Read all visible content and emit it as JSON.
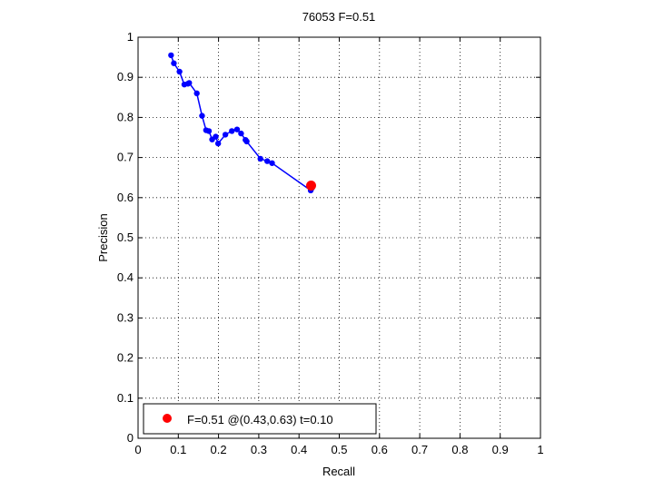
{
  "chart_data": {
    "type": "line",
    "title": "76053 F=0.51",
    "xlabel": "Recall",
    "ylabel": "Precision",
    "xlim": [
      0,
      1
    ],
    "ylim": [
      0,
      1
    ],
    "xticks": [
      0,
      0.1,
      0.2,
      0.3,
      0.4,
      0.5,
      0.6,
      0.7,
      0.8,
      0.9,
      1
    ],
    "yticks": [
      0,
      0.1,
      0.2,
      0.3,
      0.4,
      0.5,
      0.6,
      0.7,
      0.8,
      0.9,
      1
    ],
    "xtick_labels": [
      "0",
      "0.1",
      "0.2",
      "0.3",
      "0.4",
      "0.5",
      "0.6",
      "0.7",
      "0.8",
      "0.9",
      "1"
    ],
    "ytick_labels": [
      "0",
      "0.1",
      "0.2",
      "0.3",
      "0.4",
      "0.5",
      "0.6",
      "0.7",
      "0.8",
      "0.9",
      "1"
    ],
    "grid": true,
    "series": [
      {
        "color": "#0000ff",
        "x": [
          0.082,
          0.089,
          0.103,
          0.115,
          0.124,
          0.127,
          0.146,
          0.159,
          0.169,
          0.176,
          0.184,
          0.193,
          0.199,
          0.217,
          0.233,
          0.246,
          0.256,
          0.267,
          0.27,
          0.304,
          0.321,
          0.333,
          0.429,
          0.432,
          0.434
        ],
        "y": [
          0.955,
          0.935,
          0.914,
          0.882,
          0.884,
          0.886,
          0.86,
          0.804,
          0.768,
          0.766,
          0.745,
          0.752,
          0.735,
          0.757,
          0.766,
          0.77,
          0.76,
          0.744,
          0.74,
          0.697,
          0.691,
          0.686,
          0.618,
          0.624,
          0.63
        ]
      }
    ],
    "highlight": {
      "x": 0.43,
      "y": 0.63,
      "color": "#ff0000"
    },
    "legend": {
      "position": "bottom-left",
      "label": "F=0.51 @(0.43,0.63) t=0.10",
      "marker_color": "#ff0000"
    }
  }
}
